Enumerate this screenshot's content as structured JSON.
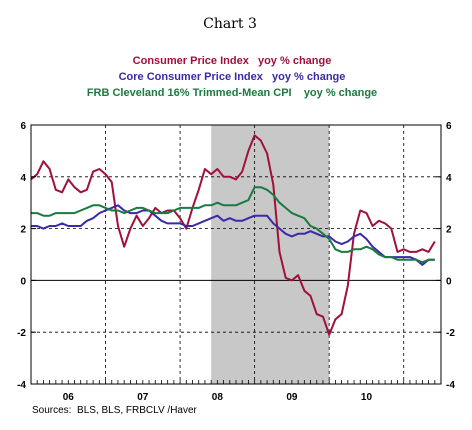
{
  "chart_data": {
    "type": "line",
    "title": "Chart 3",
    "source": "Sources:  BLS, BLS, FRBCLV /Haver",
    "ylim": [
      -4,
      6
    ],
    "y_ticks": [
      "6",
      "4",
      "2",
      "0",
      "-2",
      "-4"
    ],
    "x_tick_labels": [
      "06",
      "07",
      "08",
      "09",
      "10"
    ],
    "recession_shading": {
      "start": 2007.917,
      "end": 2009.5
    },
    "grid": "dashed vertical at year boundaries, dashed horizontal at even values",
    "colors": {
      "cpi": "#a0103a",
      "core": "#3a2aa8",
      "trimmed": "#1a7a40",
      "shading": "#c8c8c8"
    },
    "series": [
      {
        "name": "Consumer Price Index   yoy % change",
        "color": "#a0103a",
        "x": [
          2005.5,
          2005.583,
          2005.667,
          2005.75,
          2005.833,
          2005.917,
          2006.0,
          2006.083,
          2006.167,
          2006.25,
          2006.333,
          2006.417,
          2006.5,
          2006.583,
          2006.667,
          2006.75,
          2006.833,
          2006.917,
          2007.0,
          2007.083,
          2007.167,
          2007.25,
          2007.333,
          2007.417,
          2007.5,
          2007.583,
          2007.667,
          2007.75,
          2007.833,
          2007.917,
          2008.0,
          2008.083,
          2008.167,
          2008.25,
          2008.333,
          2008.417,
          2008.5,
          2008.583,
          2008.667,
          2008.75,
          2008.833,
          2008.917,
          2009.0,
          2009.083,
          2009.167,
          2009.25,
          2009.333,
          2009.417,
          2009.5,
          2009.583,
          2009.667,
          2009.75,
          2009.833,
          2009.917,
          2010.0,
          2010.083,
          2010.167,
          2010.25,
          2010.333,
          2010.417,
          2010.5,
          2010.583,
          2010.667,
          2010.75,
          2010.833,
          2010.917
        ],
        "values": [
          3.9,
          4.1,
          4.6,
          4.3,
          3.5,
          3.4,
          3.9,
          3.6,
          3.4,
          3.5,
          4.2,
          4.3,
          4.1,
          3.8,
          2.1,
          1.3,
          2.0,
          2.5,
          2.1,
          2.4,
          2.8,
          2.6,
          2.7,
          2.7,
          2.4,
          2.0,
          2.8,
          3.5,
          4.3,
          4.1,
          4.3,
          4.0,
          4.0,
          3.9,
          4.2,
          5.0,
          5.6,
          5.4,
          4.9,
          3.7,
          1.1,
          0.1,
          0.0,
          0.2,
          -0.4,
          -0.6,
          -1.3,
          -1.4,
          -2.1,
          -1.5,
          -1.3,
          -0.2,
          1.8,
          2.7,
          2.6,
          2.1,
          2.3,
          2.2,
          2.0,
          1.1,
          1.2,
          1.1,
          1.1,
          1.2,
          1.1,
          1.5
        ]
      },
      {
        "name": "Core Consumer Price Index   yoy % change",
        "color": "#3a2aa8",
        "x": [
          2005.5,
          2005.583,
          2005.667,
          2005.75,
          2005.833,
          2005.917,
          2006.0,
          2006.083,
          2006.167,
          2006.25,
          2006.333,
          2006.417,
          2006.5,
          2006.583,
          2006.667,
          2006.75,
          2006.833,
          2006.917,
          2007.0,
          2007.083,
          2007.167,
          2007.25,
          2007.333,
          2007.417,
          2007.5,
          2007.583,
          2007.667,
          2007.75,
          2007.833,
          2007.917,
          2008.0,
          2008.083,
          2008.167,
          2008.25,
          2008.333,
          2008.417,
          2008.5,
          2008.583,
          2008.667,
          2008.75,
          2008.833,
          2008.917,
          2009.0,
          2009.083,
          2009.167,
          2009.25,
          2009.333,
          2009.417,
          2009.5,
          2009.583,
          2009.667,
          2009.75,
          2009.833,
          2009.917,
          2010.0,
          2010.083,
          2010.167,
          2010.25,
          2010.333,
          2010.417,
          2010.5,
          2010.583,
          2010.667,
          2010.75,
          2010.833,
          2010.917
        ],
        "values": [
          2.1,
          2.1,
          2.0,
          2.1,
          2.1,
          2.2,
          2.1,
          2.1,
          2.1,
          2.3,
          2.4,
          2.6,
          2.7,
          2.8,
          2.9,
          2.7,
          2.6,
          2.6,
          2.7,
          2.7,
          2.5,
          2.3,
          2.2,
          2.2,
          2.2,
          2.1,
          2.1,
          2.2,
          2.3,
          2.4,
          2.5,
          2.3,
          2.4,
          2.3,
          2.3,
          2.4,
          2.5,
          2.5,
          2.5,
          2.2,
          2.0,
          1.8,
          1.7,
          1.8,
          1.8,
          1.9,
          1.8,
          1.7,
          1.7,
          1.5,
          1.4,
          1.5,
          1.7,
          1.8,
          1.6,
          1.3,
          1.1,
          0.9,
          0.9,
          0.9,
          0.9,
          0.9,
          0.8,
          0.6,
          0.8,
          0.8
        ]
      },
      {
        "name": "FRB Cleveland 16% Trimmed-Mean CPI    yoy % change",
        "color": "#1a7a40",
        "x": [
          2005.5,
          2005.583,
          2005.667,
          2005.75,
          2005.833,
          2005.917,
          2006.0,
          2006.083,
          2006.167,
          2006.25,
          2006.333,
          2006.417,
          2006.5,
          2006.583,
          2006.667,
          2006.75,
          2006.833,
          2006.917,
          2007.0,
          2007.083,
          2007.167,
          2007.25,
          2007.333,
          2007.417,
          2007.5,
          2007.583,
          2007.667,
          2007.75,
          2007.833,
          2007.917,
          2008.0,
          2008.083,
          2008.167,
          2008.25,
          2008.333,
          2008.417,
          2008.5,
          2008.583,
          2008.667,
          2008.75,
          2008.833,
          2008.917,
          2009.0,
          2009.083,
          2009.167,
          2009.25,
          2009.333,
          2009.417,
          2009.5,
          2009.583,
          2009.667,
          2009.75,
          2009.833,
          2009.917,
          2010.0,
          2010.083,
          2010.167,
          2010.25,
          2010.333,
          2010.417,
          2010.5,
          2010.583,
          2010.667,
          2010.75,
          2010.833,
          2010.917
        ],
        "values": [
          2.6,
          2.6,
          2.5,
          2.5,
          2.6,
          2.6,
          2.6,
          2.6,
          2.7,
          2.8,
          2.9,
          2.9,
          2.8,
          2.7,
          2.7,
          2.6,
          2.7,
          2.8,
          2.8,
          2.7,
          2.6,
          2.6,
          2.6,
          2.7,
          2.8,
          2.8,
          2.8,
          2.8,
          2.9,
          2.9,
          3.0,
          2.9,
          2.9,
          2.9,
          3.0,
          3.1,
          3.6,
          3.6,
          3.5,
          3.3,
          3.0,
          2.8,
          2.6,
          2.5,
          2.4,
          2.1,
          2.0,
          1.8,
          1.6,
          1.2,
          1.1,
          1.1,
          1.2,
          1.2,
          1.3,
          1.2,
          1.0,
          0.9,
          0.9,
          0.8,
          0.8,
          0.8,
          0.8,
          0.7,
          0.8,
          0.8
        ]
      }
    ]
  }
}
